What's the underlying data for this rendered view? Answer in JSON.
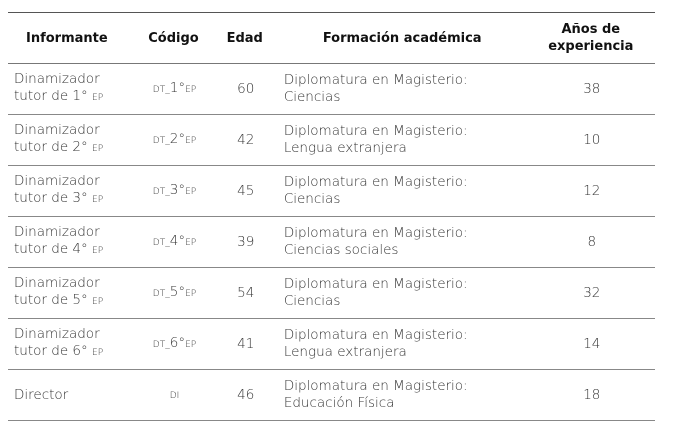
{
  "headers": [
    "Informante",
    "Código",
    "Edad",
    "Formación académica",
    "Años de experiencia"
  ],
  "rows": [
    {
      "informante_1": "Dinamizador",
      "informante_2": "tutor de 1°",
      "informante_sub": "EP",
      "code_pre": "DT_",
      "code_main": "1°",
      "code_suf": "EP",
      "edad": "60",
      "formacion_1": "Diplomatura en Magisterio:",
      "formacion_2": "Ciencias",
      "anios": "38"
    },
    {
      "informante_1": "Dinamizador",
      "informante_2": "tutor de 2°",
      "informante_sub": "EP",
      "code_pre": "DT_",
      "code_main": "2°",
      "code_suf": "EP",
      "edad": "42",
      "formacion_1": "Diplomatura en Magisterio:",
      "formacion_2": "Lengua extranjera",
      "anios": "10"
    },
    {
      "informante_1": "Dinamizador",
      "informante_2": "tutor de 3°",
      "informante_sub": "EP",
      "code_pre": "DT_",
      "code_main": "3°",
      "code_suf": "EP",
      "edad": "45",
      "formacion_1": "Diplomatura en Magisterio:",
      "formacion_2": "Ciencias",
      "anios": "12"
    },
    {
      "informante_1": "Dinamizador",
      "informante_2": "tutor de 4°",
      "informante_sub": "EP",
      "code_pre": "DT_",
      "code_main": "4°",
      "code_suf": "EP",
      "edad": "39",
      "formacion_1": "Diplomatura en Magisterio:",
      "formacion_2": "Ciencias sociales",
      "anios": "8"
    },
    {
      "informante_1": "Dinamizador",
      "informante_2": "tutor de 5°",
      "informante_sub": "EP",
      "code_pre": "DT_",
      "code_main": "5°",
      "code_suf": "EP",
      "edad": "54",
      "formacion_1": "Diplomatura en Magisterio:",
      "formacion_2": "Ciencias",
      "anios": "32"
    },
    {
      "informante_1": "Dinamizador",
      "informante_2": "tutor de 6°",
      "informante_sub": "EP",
      "code_pre": "DT_",
      "code_main": "6°",
      "code_suf": "EP",
      "edad": "41",
      "formacion_1": "Diplomatura en Magisterio:",
      "formacion_2": "Lengua extranjera",
      "anios": "14"
    },
    {
      "informante_1": "Director",
      "informante_2": "",
      "informante_sub": "",
      "code_pre": "DI",
      "code_main": "",
      "code_suf": "",
      "edad": "46",
      "formacion_1": "Diplomatura en Magisterio:",
      "formacion_2": "Educación Física",
      "anios": "18"
    }
  ]
}
